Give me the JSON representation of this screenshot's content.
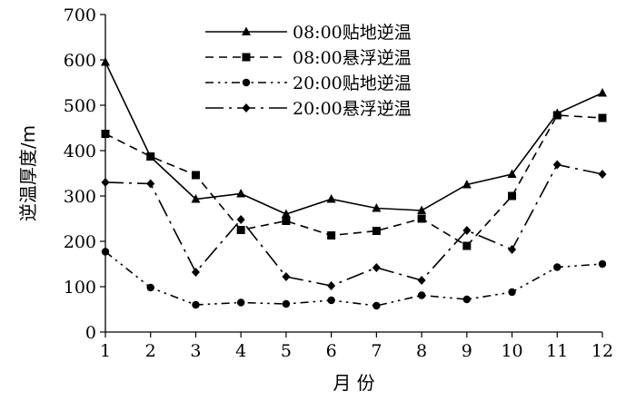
{
  "chart_data": {
    "type": "line",
    "xlabel": "月 份",
    "ylabel": "逆温厚度/m",
    "xlim": [
      1,
      12
    ],
    "ylim": [
      0,
      700
    ],
    "x_ticks": [
      "1",
      "2",
      "3",
      "4",
      "5",
      "6",
      "7",
      "8",
      "9",
      "10",
      "11",
      "12"
    ],
    "y_ticks": [
      "0",
      "100",
      "200",
      "300",
      "400",
      "500",
      "600",
      "700"
    ],
    "grid": false,
    "legend_position": "top-right",
    "x": [
      1,
      2,
      3,
      4,
      5,
      6,
      7,
      8,
      9,
      10,
      11,
      12
    ],
    "series": [
      {
        "name": "08:00贴地逆温",
        "marker": "triangle",
        "dash": "solid",
        "values": [
          595,
          386,
          293,
          305,
          260,
          293,
          273,
          268,
          325,
          348,
          482,
          527
        ]
      },
      {
        "name": "08:00悬浮逆温",
        "marker": "square",
        "dash": "dashed",
        "values": [
          437,
          387,
          346,
          225,
          245,
          213,
          223,
          250,
          190,
          300,
          478,
          472
        ]
      },
      {
        "name": "20:00贴地逆温",
        "marker": "circle",
        "dash": "dash-dot-dot",
        "values": [
          177,
          98,
          60,
          65,
          62,
          70,
          58,
          81,
          72,
          88,
          143,
          150
        ]
      },
      {
        "name": "20:00悬浮逆温",
        "marker": "diamond",
        "dash": "long-dash-dot",
        "values": [
          330,
          327,
          132,
          248,
          122,
          102,
          142,
          114,
          224,
          182,
          369,
          348
        ]
      }
    ]
  }
}
